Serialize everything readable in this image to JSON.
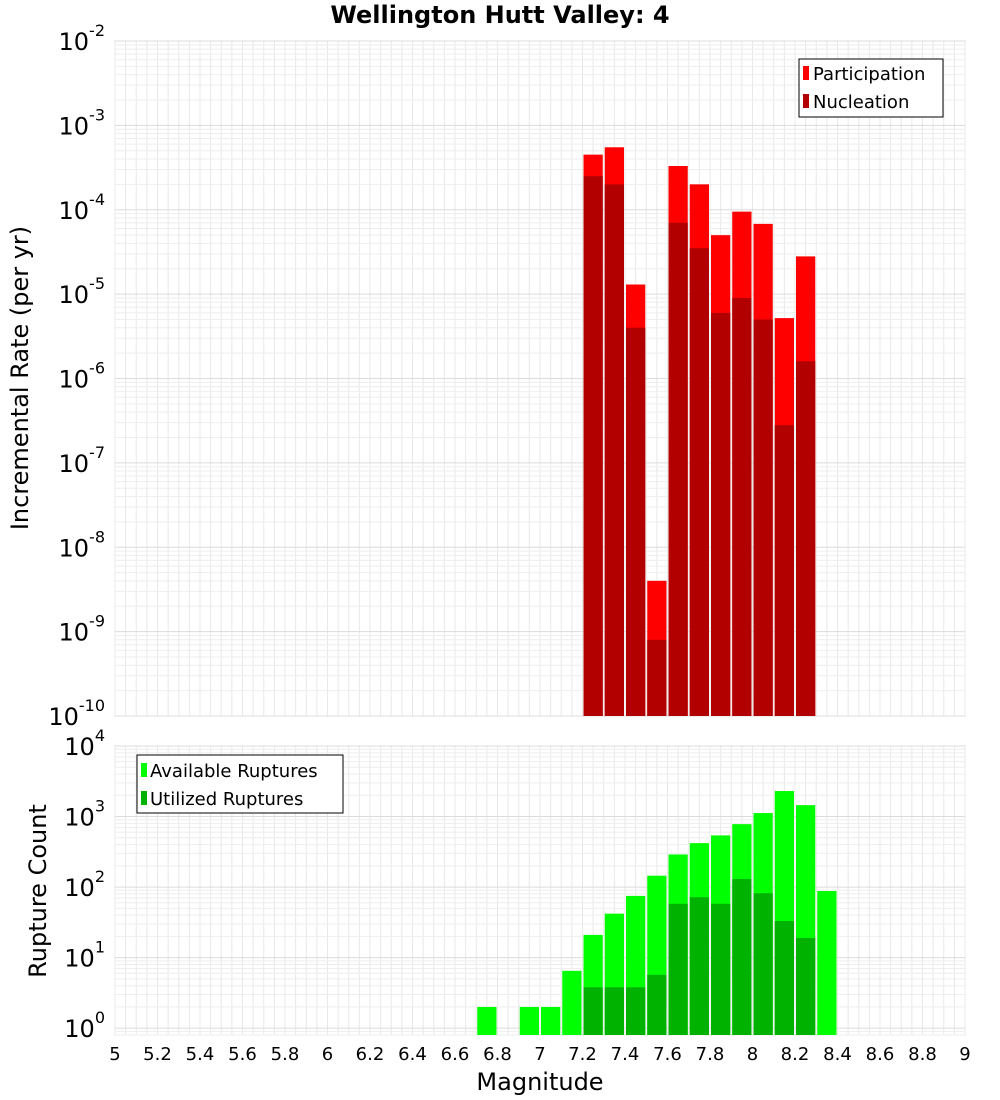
{
  "chart_data": [
    {
      "type": "bar",
      "title": "Wellington Hutt Valley: 4",
      "ylabel": "Incremental Rate (per yr)",
      "yscale": "log",
      "ylim": [
        1e-10,
        0.01
      ],
      "xlim": [
        5,
        9
      ],
      "grid": true,
      "legend": "top-right",
      "y_ticks": [
        {
          "base": "10",
          "exp": "-10"
        },
        {
          "base": "10",
          "exp": "-9"
        },
        {
          "base": "10",
          "exp": "-8"
        },
        {
          "base": "10",
          "exp": "-7"
        },
        {
          "base": "10",
          "exp": "-6"
        },
        {
          "base": "10",
          "exp": "-5"
        },
        {
          "base": "10",
          "exp": "-4"
        },
        {
          "base": "10",
          "exp": "-3"
        },
        {
          "base": "10",
          "exp": "-2"
        }
      ],
      "x": [
        7.25,
        7.35,
        7.45,
        7.55,
        7.65,
        7.75,
        7.85,
        7.95,
        8.05,
        8.15,
        8.25
      ],
      "series": [
        {
          "name": "Participation",
          "color": "#ff0000",
          "values": [
            0.00045,
            0.00055,
            1.3e-05,
            4e-09,
            0.00033,
            0.0002,
            5e-05,
            9.5e-05,
            6.8e-05,
            5.2e-06,
            2.8e-05
          ]
        },
        {
          "name": "Nucleation",
          "color": "#b20000",
          "values": [
            0.00025,
            0.0002,
            4e-06,
            8e-10,
            7e-05,
            3.5e-05,
            6e-06,
            9e-06,
            5e-06,
            2.8e-07,
            1.6e-06
          ]
        }
      ]
    },
    {
      "type": "bar",
      "ylabel": "Rupture Count",
      "xlabel": "Magnitude",
      "yscale": "log",
      "ylim": [
        0.8,
        10000.0
      ],
      "xlim": [
        5,
        9
      ],
      "grid": true,
      "legend": "top-left",
      "y_ticks": [
        {
          "base": "10",
          "exp": "0"
        },
        {
          "base": "10",
          "exp": "1"
        },
        {
          "base": "10",
          "exp": "2"
        },
        {
          "base": "10",
          "exp": "3"
        },
        {
          "base": "10",
          "exp": "4"
        }
      ],
      "x_tick_labels": [
        "5",
        "5.2",
        "5.4",
        "5.6",
        "5.8",
        "6",
        "6.2",
        "6.4",
        "6.6",
        "6.8",
        "7",
        "7.2",
        "7.4",
        "7.6",
        "7.8",
        "8",
        "8.2",
        "8.4",
        "8.6",
        "8.8",
        "9"
      ],
      "x": [
        6.75,
        6.85,
        6.95,
        7.05,
        7.15,
        7.25,
        7.35,
        7.45,
        7.55,
        7.65,
        7.75,
        7.85,
        7.95,
        8.05,
        8.15,
        8.25,
        8.35
      ],
      "series": [
        {
          "name": "Available Ruptures",
          "color": "#00ff00",
          "values": [
            2,
            0,
            2,
            2,
            6.5,
            21,
            42,
            75,
            145,
            290,
            420,
            540,
            780,
            1120,
            2300,
            1450,
            88
          ]
        },
        {
          "name": "Utilized Ruptures",
          "color": "#00b200",
          "values": [
            0,
            0,
            0,
            0,
            0,
            3.8,
            3.8,
            3.8,
            5.7,
            58,
            72,
            58,
            130,
            82,
            33,
            19,
            0
          ]
        }
      ]
    }
  ]
}
